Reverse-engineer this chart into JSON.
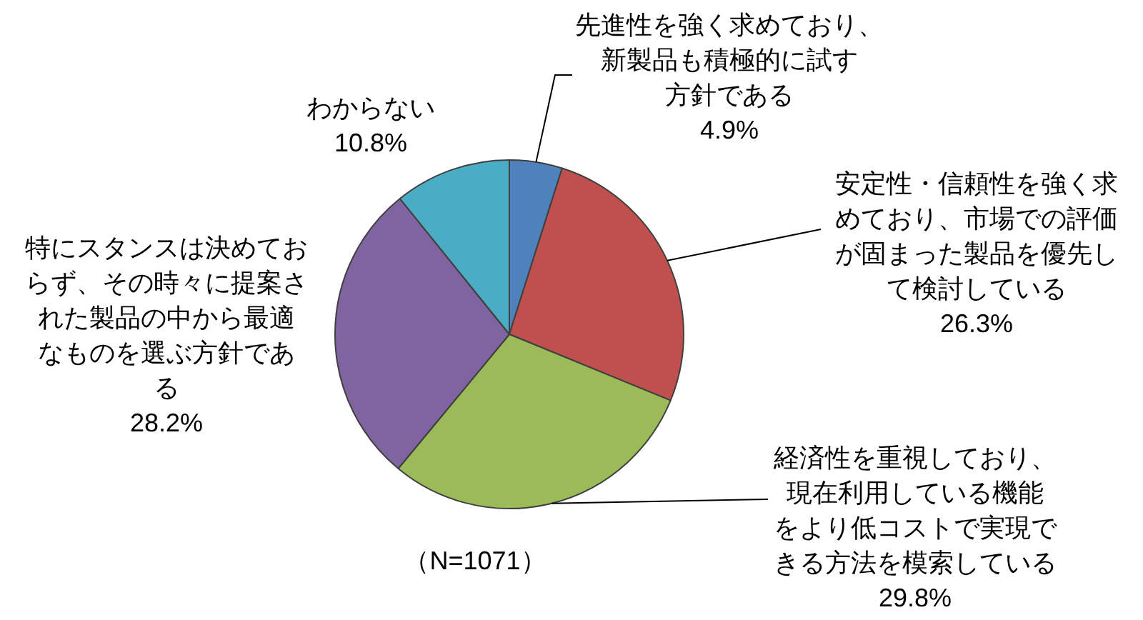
{
  "chart_data": {
    "type": "pie",
    "categories": [
      "先進性を強く求めており、新製品も積極的に試す方針である",
      "安定性・信頼性を強く求めており、市場での評価が固まった製品を優先して検討している",
      "経済性を重視しており、現在利用している機能をより低コストで実現できる方法を模索している",
      "特にスタンスは決めておらず、その時々に提案された製品の中から最適なものを選ぶ方針である",
      "わからない"
    ],
    "values": [
      4.9,
      26.3,
      29.8,
      28.2,
      10.8
    ],
    "colors": [
      "#4f81bd",
      "#c0504d",
      "#9bbb59",
      "#8064a2",
      "#4bacc6"
    ],
    "value_labels": [
      "4.9%",
      "26.3%",
      "29.8%",
      "28.2%",
      "10.8%"
    ],
    "annotations": [
      "（N=1071）"
    ]
  }
}
